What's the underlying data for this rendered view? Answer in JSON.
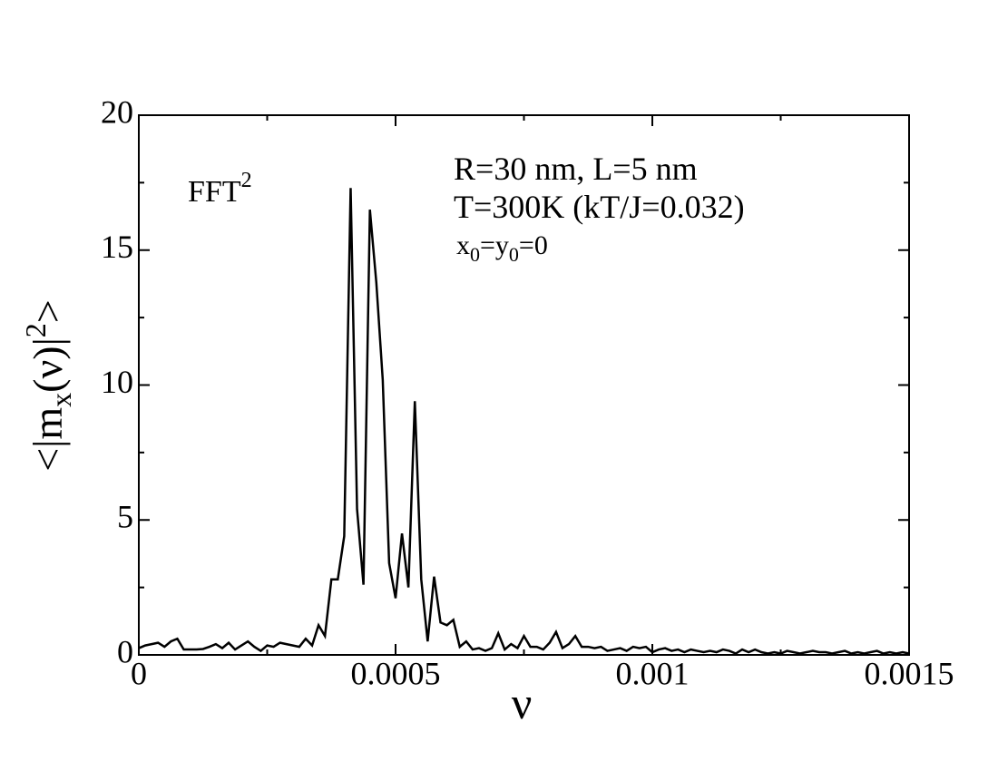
{
  "chart_data": {
    "type": "line",
    "ylabel_parts": [
      "<|m",
      "x",
      "(ν)|",
      "2",
      ">"
    ],
    "xlabel": "ν",
    "annotations": {
      "fft": [
        "FFT",
        "2"
      ],
      "line1": "R=30 nm, L=5 nm",
      "line2": "T=300K (kT/J=0.032)",
      "line3": [
        "x",
        "0",
        "=y",
        "0",
        "=0"
      ]
    },
    "x": [
      0,
      1.25e-05,
      2.5e-05,
      3.75e-05,
      5e-05,
      6.25e-05,
      7.5e-05,
      8.75e-05,
      0.0001,
      0.0001125,
      0.000125,
      0.0001375,
      0.00015,
      0.0001625,
      0.000175,
      0.0001875,
      0.0002,
      0.0002125,
      0.000225,
      0.0002375,
      0.00025,
      0.0002625,
      0.000275,
      0.0002875,
      0.0003,
      0.0003125,
      0.000325,
      0.0003375,
      0.00035,
      0.0003625,
      0.000375,
      0.0003875,
      0.0004,
      0.0004125,
      0.000425,
      0.0004375,
      0.00045,
      0.0004625,
      0.000475,
      0.0004875,
      0.0005,
      0.0005125,
      0.000525,
      0.0005375,
      0.00055,
      0.0005625,
      0.000575,
      0.0005875,
      0.0006,
      0.0006125,
      0.000625,
      0.0006375,
      0.00065,
      0.0006625,
      0.000675,
      0.0006875,
      0.0007,
      0.0007125,
      0.000725,
      0.0007375,
      0.00075,
      0.0007625,
      0.000775,
      0.0007875,
      0.0008,
      0.0008125,
      0.000825,
      0.0008375,
      0.00085,
      0.0008625,
      0.000875,
      0.0008875,
      0.0009,
      0.0009125,
      0.000925,
      0.0009375,
      0.00095,
      0.0009625,
      0.000975,
      0.0009875,
      0.001,
      0.0010125,
      0.001025,
      0.0010375,
      0.00105,
      0.0010625,
      0.001075,
      0.0010875,
      0.0011,
      0.0011125,
      0.001125,
      0.0011375,
      0.00115,
      0.0011625,
      0.001175,
      0.0011875,
      0.0012,
      0.0012125,
      0.001225,
      0.0012375,
      0.00125,
      0.0012625,
      0.001275,
      0.0012875,
      0.0013,
      0.0013125,
      0.001325,
      0.0013375,
      0.00135,
      0.0013625,
      0.001375,
      0.0013875,
      0.0014,
      0.0014125,
      0.001425,
      0.0014375,
      0.00145,
      0.0014625,
      0.001475,
      0.0014875,
      0.0015
    ],
    "series": [
      {
        "color": "#000000",
        "values": [
          0.25,
          0.35,
          0.4,
          0.45,
          0.3,
          0.5,
          0.6,
          0.2,
          0.2,
          0.2,
          0.22,
          0.3,
          0.4,
          0.25,
          0.45,
          0.2,
          0.35,
          0.5,
          0.3,
          0.15,
          0.35,
          0.3,
          0.45,
          0.4,
          0.35,
          0.3,
          0.6,
          0.35,
          1.1,
          0.7,
          2.8,
          2.8,
          4.4,
          17.3,
          5.4,
          2.6,
          16.5,
          13.8,
          10.2,
          3.4,
          2.1,
          4.5,
          2.5,
          9.4,
          2.8,
          0.5,
          2.9,
          1.2,
          1.1,
          1.3,
          0.3,
          0.5,
          0.2,
          0.25,
          0.15,
          0.25,
          0.8,
          0.2,
          0.4,
          0.25,
          0.7,
          0.3,
          0.3,
          0.2,
          0.45,
          0.85,
          0.25,
          0.4,
          0.7,
          0.3,
          0.3,
          0.25,
          0.3,
          0.15,
          0.2,
          0.25,
          0.15,
          0.3,
          0.25,
          0.3,
          0.1,
          0.2,
          0.25,
          0.15,
          0.2,
          0.1,
          0.2,
          0.15,
          0.1,
          0.15,
          0.1,
          0.2,
          0.15,
          0.05,
          0.2,
          0.1,
          0.2,
          0.1,
          0.05,
          0.1,
          0.05,
          0.15,
          0.1,
          0.05,
          0.1,
          0.15,
          0.1,
          0.1,
          0.05,
          0.1,
          0.15,
          0.05,
          0.1,
          0.05,
          0.1,
          0.15,
          0.05,
          0.1,
          0.05,
          0.1,
          0.05
        ]
      }
    ],
    "xlim": [
      0,
      0.0015
    ],
    "xticks": [
      0,
      0.0005,
      0.001,
      0.0015
    ],
    "xminorticks": [
      0.00025,
      0.00075,
      0.00125
    ],
    "ylim": [
      0,
      20
    ],
    "yticks": [
      0,
      5,
      10,
      15,
      20
    ],
    "yminorticks": [
      2.5,
      7.5,
      12.5,
      17.5
    ],
    "grid": false
  }
}
